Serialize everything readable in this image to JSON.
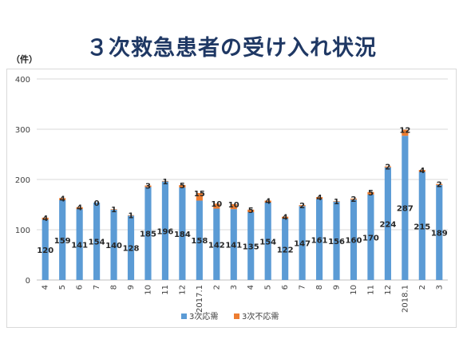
{
  "page": {
    "title": "３次救急患者の受け入れ状況",
    "unit_label": "（件）"
  },
  "chart_data": {
    "type": "bar",
    "stacked": true,
    "categories": [
      "4",
      "5",
      "6",
      "7",
      "8",
      "9",
      "10",
      "11",
      "12",
      "2017.1",
      "2",
      "3",
      "4",
      "5",
      "6",
      "7",
      "8",
      "9",
      "10",
      "11",
      "12",
      "2018.1",
      "2",
      "3"
    ],
    "series": [
      {
        "name": "3次応需",
        "color": "#5b9bd5",
        "values": [
          120,
          159,
          141,
          154,
          140,
          128,
          185,
          196,
          184,
          158,
          142,
          141,
          135,
          154,
          122,
          147,
          161,
          156,
          160,
          170,
          224,
          287,
          215,
          189
        ]
      },
      {
        "name": "3次不応需",
        "color": "#ed7d31",
        "values": [
          4,
          4,
          4,
          0,
          1,
          1,
          3,
          1,
          5,
          15,
          10,
          10,
          5,
          4,
          4,
          2,
          4,
          1,
          2,
          5,
          2,
          12,
          4,
          2
        ]
      }
    ],
    "ylim": [
      0,
      400
    ],
    "yticks": [
      0,
      100,
      200,
      300,
      400
    ],
    "grid": true,
    "legend_position": "bottom"
  }
}
